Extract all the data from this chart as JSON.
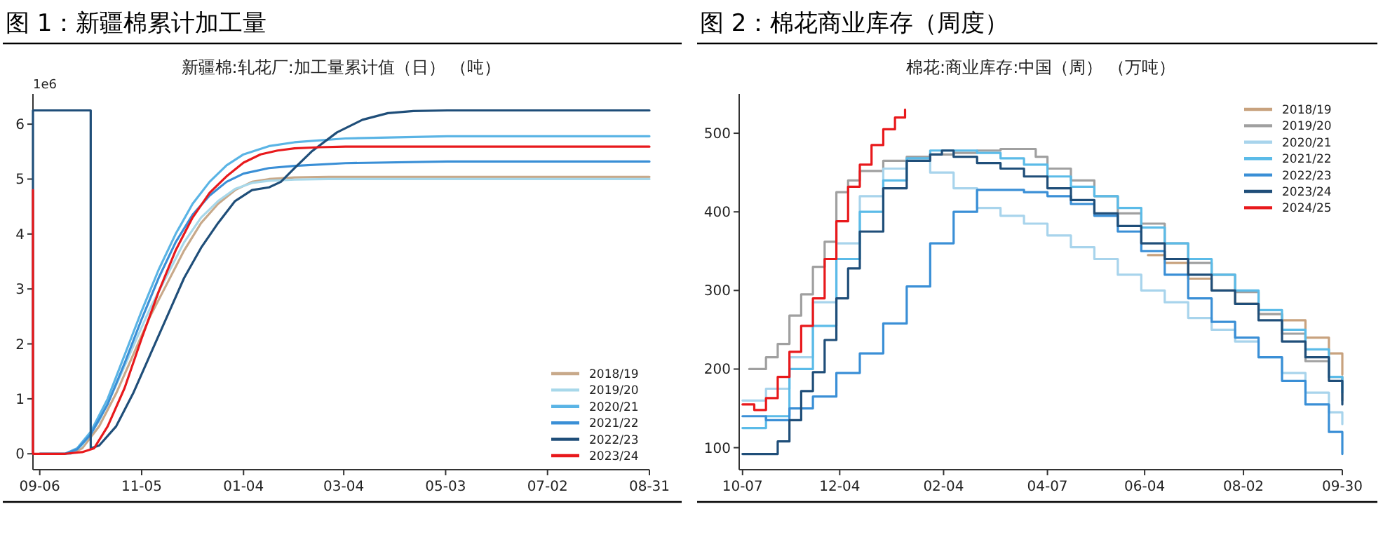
{
  "chart_data": [
    {
      "type": "line",
      "title": "图 1：新疆棉累计加工量",
      "subtitle": "新疆棉:轧花厂:加工量累计值（日）  （吨）",
      "annotations": [
        "1e6"
      ],
      "legend": "bottom right",
      "xlim": [
        "2022-09-02",
        "2023-08-31"
      ],
      "xticks": [
        {
          "value": "2022-09-06",
          "label": "09-06"
        },
        {
          "value": "2022-11-05",
          "label": "11-05"
        },
        {
          "value": "2023-01-04",
          "label": "01-04"
        },
        {
          "value": "2023-03-04",
          "label": "03-04"
        },
        {
          "value": "2023-05-03",
          "label": "05-03"
        },
        {
          "value": "2023-07-02",
          "label": "07-02"
        },
        {
          "value": "2023-08-31",
          "label": "08-31"
        }
      ],
      "ylim": [
        -0.29,
        6.55
      ],
      "yticks": [
        0,
        1,
        2,
        3,
        4,
        5,
        6
      ],
      "series": [
        {
          "name": "2018/19",
          "color": "#c8a98a",
          "x": [
            "2022-09-06",
            "2022-09-24",
            "2022-10-01",
            "2022-10-11",
            "2022-10-21",
            "2022-10-31",
            "2022-11-10",
            "2022-11-20",
            "2022-11-30",
            "2022-12-10",
            "2022-12-20",
            "2022-12-30",
            "2023-01-09",
            "2023-01-19",
            "2023-02-03",
            "2023-02-23",
            "2023-03-25",
            "2023-08-31"
          ],
          "values": [
            0,
            0,
            0.1,
            0.5,
            1.1,
            1.8,
            2.5,
            3.1,
            3.7,
            4.2,
            4.55,
            4.8,
            4.95,
            5.0,
            5.03,
            5.04,
            5.04,
            5.04
          ]
        },
        {
          "name": "2019/20",
          "color": "#a8d8ea",
          "x": [
            "2022-09-06",
            "2022-09-24",
            "2022-10-01",
            "2022-10-11",
            "2022-10-21",
            "2022-10-31",
            "2022-11-10",
            "2022-11-20",
            "2022-11-30",
            "2022-12-10",
            "2022-12-20",
            "2022-12-30",
            "2023-01-09",
            "2023-01-19",
            "2023-02-03",
            "2023-02-23",
            "2023-03-25",
            "2023-08-31"
          ],
          "values": [
            0,
            0,
            0.15,
            0.6,
            1.25,
            1.95,
            2.65,
            3.25,
            3.85,
            4.3,
            4.6,
            4.82,
            4.93,
            4.97,
            4.99,
            5.0,
            5.0,
            5.0
          ]
        },
        {
          "name": "2020/21",
          "color": "#5ab4e5",
          "x": [
            "2022-09-06",
            "2022-09-21",
            "2022-09-28",
            "2022-10-06",
            "2022-10-16",
            "2022-10-26",
            "2022-11-05",
            "2022-11-15",
            "2022-11-25",
            "2022-12-05",
            "2022-12-15",
            "2022-12-25",
            "2023-01-04",
            "2023-01-19",
            "2023-02-03",
            "2023-03-05",
            "2023-05-04",
            "2023-08-31"
          ],
          "values": [
            0,
            0,
            0.1,
            0.4,
            1.0,
            1.8,
            2.6,
            3.35,
            4.0,
            4.55,
            4.95,
            5.25,
            5.45,
            5.6,
            5.67,
            5.74,
            5.78,
            5.78
          ]
        },
        {
          "name": "2021/22",
          "color": "#3a8fd6",
          "x": [
            "2022-09-06",
            "2022-09-21",
            "2022-09-28",
            "2022-10-06",
            "2022-10-16",
            "2022-10-26",
            "2022-11-05",
            "2022-11-15",
            "2022-11-25",
            "2022-12-05",
            "2022-12-15",
            "2022-12-25",
            "2023-01-04",
            "2023-01-19",
            "2023-02-03",
            "2023-03-05",
            "2023-05-04",
            "2023-08-31"
          ],
          "values": [
            0,
            0,
            0.08,
            0.35,
            0.9,
            1.65,
            2.45,
            3.2,
            3.85,
            4.35,
            4.7,
            4.95,
            5.1,
            5.2,
            5.24,
            5.29,
            5.32,
            5.32
          ]
        },
        {
          "name": "2022/23",
          "color": "#1f4e79",
          "x": [
            "2022-09-02",
            "2022-09-02",
            "2022-10-06",
            "2022-10-06",
            "2022-10-11",
            "2022-10-21",
            "2022-10-31",
            "2022-11-10",
            "2022-11-20",
            "2022-11-30",
            "2022-12-10",
            "2022-12-20",
            "2022-12-30",
            "2023-01-09",
            "2023-01-19",
            "2023-01-26",
            "2023-02-03",
            "2023-02-13",
            "2023-02-28",
            "2023-03-15",
            "2023-03-30",
            "2023-04-14",
            "2023-05-04",
            "2023-08-31"
          ],
          "values": [
            0,
            6.25,
            6.25,
            0.1,
            0.15,
            0.5,
            1.1,
            1.8,
            2.5,
            3.2,
            3.75,
            4.2,
            4.6,
            4.8,
            4.85,
            4.95,
            5.2,
            5.5,
            5.85,
            6.08,
            6.2,
            6.24,
            6.25,
            6.25
          ]
        },
        {
          "name": "2023/24",
          "color": "#e8191c",
          "x": [
            "2022-09-02",
            "2022-09-02",
            "2022-09-06",
            "2022-09-21",
            "2022-10-01",
            "2022-10-08",
            "2022-10-16",
            "2022-10-26",
            "2022-11-05",
            "2022-11-15",
            "2022-11-25",
            "2022-12-05",
            "2022-12-15",
            "2022-12-25",
            "2023-01-04",
            "2023-01-14",
            "2023-01-24",
            "2023-02-03",
            "2023-02-18",
            "2023-03-05",
            "2023-05-04",
            "2023-08-31"
          ],
          "values": [
            4.8,
            0,
            0,
            0,
            0.03,
            0.1,
            0.5,
            1.2,
            2.1,
            2.95,
            3.7,
            4.3,
            4.75,
            5.05,
            5.3,
            5.45,
            5.52,
            5.56,
            5.58,
            5.59,
            5.59,
            5.59
          ]
        }
      ]
    },
    {
      "type": "step",
      "title": "图 2：棉花商业库存（周度）",
      "subtitle": "棉花:商业库存:中国（周）  （万吨）",
      "legend": "top right",
      "xlim": [
        "2024-10-05",
        "2025-09-30"
      ],
      "xticks": [
        {
          "value": "2024-10-07",
          "label": "10-07"
        },
        {
          "value": "2024-12-04",
          "label": "12-04"
        },
        {
          "value": "2025-02-04",
          "label": "02-04"
        },
        {
          "value": "2025-04-07",
          "label": "04-07"
        },
        {
          "value": "2025-06-04",
          "label": "06-04"
        },
        {
          "value": "2025-08-02",
          "label": "08-02"
        },
        {
          "value": "2025-09-30",
          "label": "09-30"
        }
      ],
      "ylim": [
        72,
        550
      ],
      "yticks": [
        100,
        200,
        300,
        400,
        500
      ],
      "series": [
        {
          "name": "2018/19",
          "color": "#c8a27e",
          "x": [
            "2025-06-06",
            "2025-06-16",
            "2025-06-30",
            "2025-07-14",
            "2025-07-28",
            "2025-08-11",
            "2025-08-25",
            "2025-09-08",
            "2025-09-22",
            "2025-09-30"
          ],
          "values": [
            345,
            335,
            315,
            300,
            283,
            270,
            262,
            240,
            220,
            193
          ]
        },
        {
          "name": "2019/20",
          "color": "#a0a0a0",
          "x": [
            "2024-10-11",
            "2024-10-21",
            "2024-10-28",
            "2024-11-04",
            "2024-11-11",
            "2024-11-18",
            "2024-11-25",
            "2024-12-02",
            "2024-12-09",
            "2024-12-16",
            "2024-12-30",
            "2025-01-13",
            "2025-01-27",
            "2025-02-10",
            "2025-02-24",
            "2025-03-10",
            "2025-03-24",
            "2025-03-31",
            "2025-04-07",
            "2025-04-21",
            "2025-05-05",
            "2025-05-19",
            "2025-06-02",
            "2025-06-16",
            "2025-06-30",
            "2025-07-14",
            "2025-07-28",
            "2025-08-11",
            "2025-08-25",
            "2025-09-08",
            "2025-09-22",
            "2025-09-30"
          ],
          "values": [
            200,
            215,
            232,
            268,
            295,
            330,
            362,
            425,
            440,
            452,
            465,
            470,
            473,
            475,
            478,
            480,
            480,
            470,
            455,
            440,
            420,
            398,
            385,
            360,
            335,
            320,
            298,
            270,
            245,
            210,
            190,
            160
          ]
        },
        {
          "name": "2020/21",
          "color": "#a8d4ec",
          "x": [
            "2024-10-07",
            "2024-10-21",
            "2024-11-04",
            "2024-11-18",
            "2024-12-02",
            "2024-12-16",
            "2024-12-30",
            "2025-01-13",
            "2025-01-27",
            "2025-02-10",
            "2025-02-24",
            "2025-03-10",
            "2025-03-24",
            "2025-04-07",
            "2025-04-21",
            "2025-05-05",
            "2025-05-19",
            "2025-06-02",
            "2025-06-16",
            "2025-06-30",
            "2025-07-14",
            "2025-07-28",
            "2025-08-11",
            "2025-08-25",
            "2025-09-08",
            "2025-09-22",
            "2025-09-30"
          ],
          "values": [
            160,
            175,
            215,
            285,
            360,
            420,
            455,
            465,
            450,
            430,
            405,
            395,
            385,
            370,
            355,
            340,
            320,
            300,
            285,
            265,
            250,
            235,
            215,
            195,
            170,
            145,
            130
          ]
        },
        {
          "name": "2021/22",
          "color": "#5bbbe8",
          "x": [
            "2024-10-07",
            "2024-10-21",
            "2024-11-04",
            "2024-11-18",
            "2024-12-02",
            "2024-12-16",
            "2024-12-30",
            "2025-01-13",
            "2025-01-27",
            "2025-02-10",
            "2025-02-24",
            "2025-03-10",
            "2025-03-24",
            "2025-04-07",
            "2025-04-21",
            "2025-05-05",
            "2025-05-19",
            "2025-06-02",
            "2025-06-16",
            "2025-06-30",
            "2025-07-14",
            "2025-07-28",
            "2025-08-11",
            "2025-08-25",
            "2025-09-08",
            "2025-09-22",
            "2025-09-30"
          ],
          "values": [
            125,
            140,
            200,
            255,
            340,
            400,
            440,
            468,
            478,
            478,
            475,
            468,
            460,
            445,
            432,
            420,
            405,
            380,
            360,
            340,
            320,
            300,
            275,
            250,
            225,
            190,
            170
          ]
        },
        {
          "name": "2022/23",
          "color": "#3a8fd6",
          "x": [
            "2024-10-07",
            "2024-10-21",
            "2024-11-04",
            "2024-11-18",
            "2024-12-02",
            "2024-12-16",
            "2024-12-30",
            "2025-01-13",
            "2025-01-27",
            "2025-02-10",
            "2025-02-24",
            "2025-03-10",
            "2025-03-24",
            "2025-04-07",
            "2025-04-21",
            "2025-05-05",
            "2025-05-19",
            "2025-06-02",
            "2025-06-16",
            "2025-06-30",
            "2025-07-14",
            "2025-07-28",
            "2025-08-11",
            "2025-08-25",
            "2025-09-08",
            "2025-09-22",
            "2025-09-30"
          ],
          "values": [
            140,
            135,
            150,
            165,
            195,
            220,
            258,
            305,
            360,
            400,
            428,
            428,
            425,
            420,
            410,
            395,
            375,
            350,
            320,
            290,
            260,
            240,
            215,
            185,
            155,
            120,
            92
          ]
        },
        {
          "name": "2023/24",
          "color": "#1f4e79",
          "x": [
            "2024-10-07",
            "2024-10-21",
            "2024-10-28",
            "2024-11-04",
            "2024-11-11",
            "2024-11-18",
            "2024-11-25",
            "2024-12-02",
            "2024-12-09",
            "2024-12-16",
            "2024-12-30",
            "2025-01-13",
            "2025-01-27",
            "2025-02-03",
            "2025-02-10",
            "2025-02-24",
            "2025-03-10",
            "2025-03-24",
            "2025-04-07",
            "2025-04-21",
            "2025-05-05",
            "2025-05-19",
            "2025-06-02",
            "2025-06-16",
            "2025-06-30",
            "2025-07-14",
            "2025-07-28",
            "2025-08-11",
            "2025-08-25",
            "2025-09-08",
            "2025-09-22",
            "2025-09-30"
          ],
          "values": [
            92,
            92,
            108,
            135,
            172,
            196,
            237,
            290,
            328,
            375,
            430,
            465,
            473,
            478,
            470,
            462,
            455,
            445,
            430,
            415,
            398,
            382,
            360,
            340,
            320,
            300,
            283,
            262,
            235,
            215,
            185,
            155
          ]
        },
        {
          "name": "2024/25",
          "color": "#e8191c",
          "x": [
            "2024-10-07",
            "2024-10-14",
            "2024-10-21",
            "2024-10-28",
            "2024-11-04",
            "2024-11-11",
            "2024-11-18",
            "2024-11-25",
            "2024-12-02",
            "2024-12-09",
            "2024-12-16",
            "2024-12-23",
            "2024-12-30",
            "2025-01-06",
            "2025-01-12"
          ],
          "values": [
            155,
            148,
            163,
            190,
            222,
            255,
            290,
            340,
            388,
            432,
            460,
            485,
            505,
            520,
            530
          ]
        }
      ]
    }
  ]
}
